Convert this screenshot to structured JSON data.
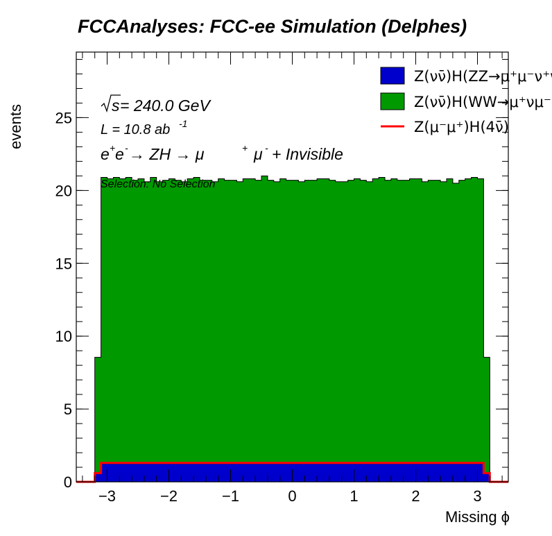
{
  "title": "FCCAnalyses: FCC-ee Simulation (Delphes)",
  "annotations": {
    "sqrt_s": "s",
    "energy": " = 240.0 GeV",
    "lumi_base": "L = 10.8 ab",
    "lumi_exp": "-1",
    "process_e": "e",
    "process_plus": "+",
    "process_e2": "e",
    "process_minus": "-",
    "process_arrow1": " → ZH  → μ",
    "process_plus2": "+",
    "process_mu2": "μ",
    "process_minus2": "-",
    "process_rest": " + Invisible",
    "selection": "Selection: No Selection"
  },
  "legend": [
    {
      "label": "Z(νν̄)H(ZZ→μ⁺μ⁻ν⁺ν⁻)",
      "color": "#0000cc",
      "style": "fill"
    },
    {
      "label": "Z(νν̄)H(WW→μ⁺νμ⁻ν̄)",
      "color": "#009900",
      "style": "fill"
    },
    {
      "label": "Z(μ⁻μ⁺)H(4ν̄)",
      "color": "#ff0000",
      "style": "line"
    }
  ],
  "chart_data": {
    "type": "area",
    "stacked_histogram": true,
    "x_edges_start": -3.5,
    "x_edges_step": 0.1,
    "nbins": 70,
    "xlim": [
      -3.5,
      3.5
    ],
    "ylim": [
      0,
      29.5
    ],
    "xlabel": "Missing ϕ",
    "ylabel": "events",
    "xticks": [
      -3,
      -2,
      -1,
      0,
      1,
      2,
      3
    ],
    "xtick_labels": [
      "−3",
      "−2",
      "−1",
      "0",
      "1",
      "2",
      "3"
    ],
    "yticks": [
      0,
      5,
      10,
      15,
      20,
      25
    ],
    "ytick_labels": [
      "0",
      "5",
      "10",
      "15",
      "20",
      "25"
    ],
    "series": [
      {
        "name": "Z(νν̄)H(ZZ→μ⁺μ⁻ν⁺ν⁻)",
        "color": "#0000cc",
        "values": [
          0,
          0,
          0,
          0.55,
          1.25,
          1.25,
          1.25,
          1.25,
          1.25,
          1.25,
          1.25,
          1.25,
          1.25,
          1.25,
          1.25,
          1.25,
          1.25,
          1.25,
          1.25,
          1.25,
          1.25,
          1.25,
          1.25,
          1.25,
          1.25,
          1.25,
          1.25,
          1.25,
          1.25,
          1.25,
          1.25,
          1.25,
          1.25,
          1.25,
          1.25,
          1.25,
          1.25,
          1.25,
          1.25,
          1.25,
          1.25,
          1.25,
          1.25,
          1.25,
          1.25,
          1.25,
          1.25,
          1.25,
          1.25,
          1.25,
          1.25,
          1.25,
          1.25,
          1.25,
          1.25,
          1.25,
          1.25,
          1.25,
          1.25,
          1.25,
          1.25,
          1.25,
          1.25,
          1.25,
          1.25,
          1.25,
          0.55,
          0,
          0,
          0
        ]
      },
      {
        "name": "Z(νν̄)H(WW→μ⁺νμ⁻ν̄)",
        "color": "#009900",
        "stack_totals": [
          0,
          0,
          0,
          8.55,
          20.9,
          20.8,
          20.9,
          20.8,
          20.9,
          20.7,
          20.8,
          20.6,
          20.9,
          20.6,
          20.7,
          20.8,
          20.7,
          20.6,
          20.8,
          20.9,
          20.7,
          20.7,
          20.6,
          20.8,
          20.7,
          20.7,
          20.6,
          20.8,
          20.8,
          20.7,
          21.0,
          20.7,
          20.6,
          20.8,
          20.7,
          20.7,
          20.6,
          20.7,
          20.7,
          20.8,
          20.8,
          20.7,
          20.6,
          20.6,
          20.7,
          20.8,
          20.7,
          20.6,
          20.8,
          20.9,
          20.7,
          20.8,
          20.7,
          20.7,
          20.8,
          20.8,
          20.6,
          20.7,
          20.7,
          20.6,
          20.8,
          20.5,
          20.7,
          20.8,
          20.9,
          20.8,
          8.55,
          0,
          0,
          0
        ]
      },
      {
        "name": "Z(μ⁻μ⁺)H(4ν̄)",
        "color": "#ff0000",
        "style": "line",
        "values": [
          0,
          0,
          0,
          0.6,
          1.3,
          1.3,
          1.3,
          1.3,
          1.3,
          1.3,
          1.3,
          1.3,
          1.3,
          1.3,
          1.3,
          1.3,
          1.3,
          1.3,
          1.3,
          1.3,
          1.3,
          1.3,
          1.3,
          1.3,
          1.3,
          1.3,
          1.3,
          1.3,
          1.3,
          1.3,
          1.3,
          1.3,
          1.3,
          1.3,
          1.3,
          1.3,
          1.3,
          1.3,
          1.3,
          1.3,
          1.3,
          1.3,
          1.3,
          1.3,
          1.3,
          1.3,
          1.3,
          1.3,
          1.3,
          1.3,
          1.3,
          1.3,
          1.3,
          1.3,
          1.3,
          1.3,
          1.3,
          1.3,
          1.3,
          1.3,
          1.3,
          1.3,
          1.3,
          1.3,
          1.3,
          1.3,
          0.6,
          0,
          0,
          0
        ]
      }
    ]
  }
}
